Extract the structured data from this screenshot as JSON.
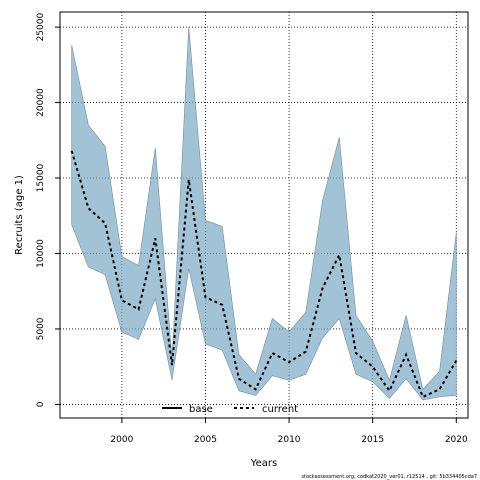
{
  "chart_data": {
    "type": "line",
    "xlabel": "Years",
    "ylabel": "Recruits (age 1)",
    "xlim": [
      1996.3,
      2020.7
    ],
    "ylim": [
      -900,
      26000
    ],
    "x_ticks": [
      2000,
      2005,
      2010,
      2015,
      2020
    ],
    "y_ticks": [
      0,
      5000,
      10000,
      15000,
      20000,
      25000
    ],
    "grid": true,
    "legend_position": "bottom-center",
    "years": [
      1997,
      1998,
      1999,
      2000,
      2001,
      2002,
      2003,
      2004,
      2005,
      2006,
      2007,
      2008,
      2009,
      2010,
      2011,
      2012,
      2013,
      2014,
      2015,
      2016,
      2017,
      2018,
      2019,
      2020
    ],
    "band_upper": [
      23800,
      18500,
      17100,
      9800,
      9200,
      17000,
      3000,
      25000,
      12200,
      11800,
      3300,
      2000,
      5700,
      4800,
      6100,
      13500,
      17700,
      5900,
      4200,
      1600,
      5900,
      1000,
      2200,
      11400
    ],
    "band_lower": [
      11900,
      9100,
      8600,
      4800,
      4300,
      7000,
      1600,
      9000,
      4000,
      3600,
      900,
      600,
      1900,
      1600,
      2000,
      4400,
      5700,
      2000,
      1500,
      400,
      1700,
      300,
      500,
      600
    ],
    "series": [
      {
        "name": "base",
        "style": "solid",
        "color": "#000000",
        "values": []
      },
      {
        "name": "current",
        "style": "dashed",
        "color": "#000000",
        "values": [
          16800,
          13000,
          12000,
          6900,
          6300,
          11000,
          2600,
          14900,
          7100,
          6600,
          1700,
          1000,
          3400,
          2800,
          3500,
          7700,
          9900,
          3400,
          2500,
          900,
          3300,
          500,
          1000,
          2900
        ]
      }
    ],
    "band_color": "#7aa9c4",
    "footer": "stockassessment.org, codkat2020_ver01, r12514 , git: 5b334405cda7"
  }
}
